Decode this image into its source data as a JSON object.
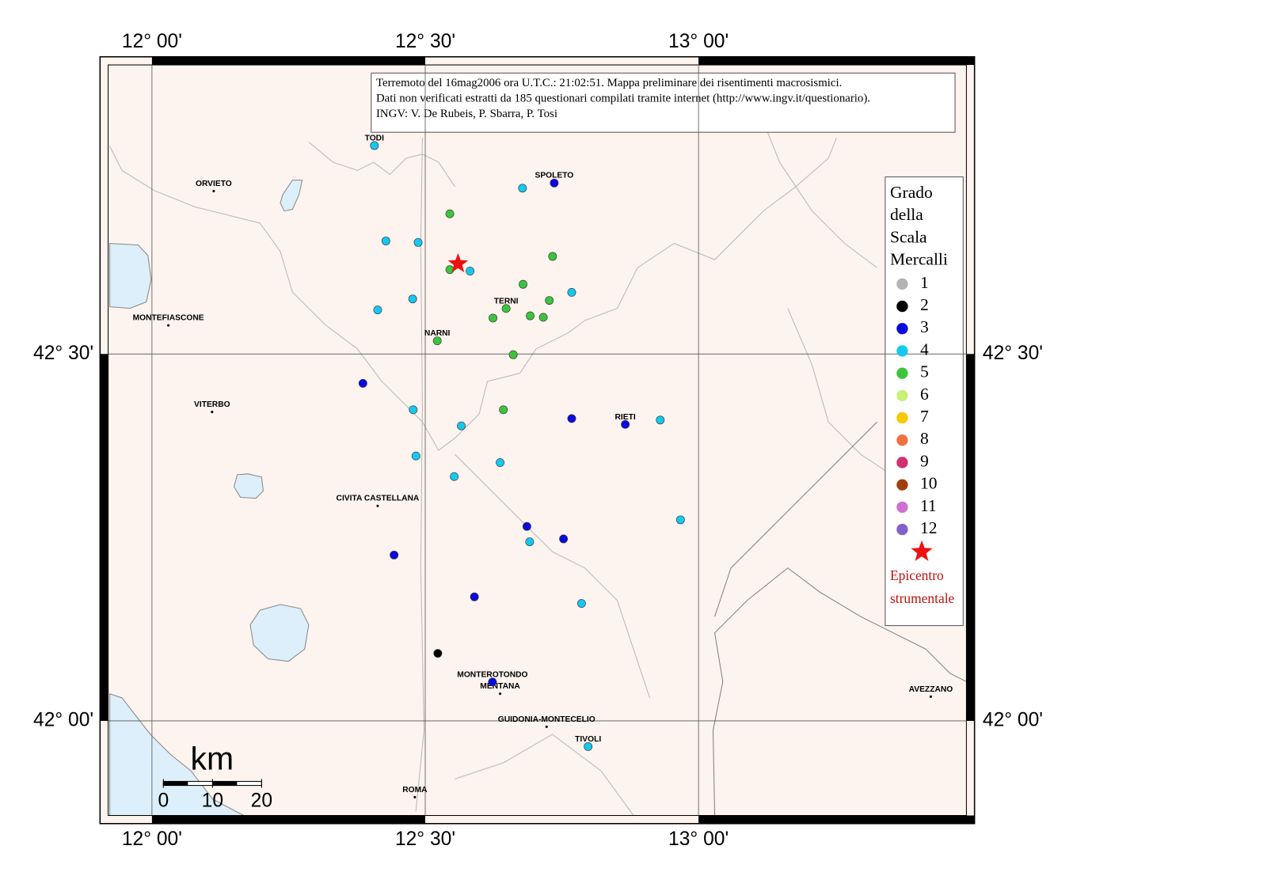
{
  "map": {
    "header": [
      "Terremoto del 16mag2006 ora U.T.C.: 21:02:51.  Mappa preliminare dei risentimenti macrosismici.",
      "Dati non verificati estratti da 185 questionari compilati tramite internet (http://www.ingv.it/questionario).",
      "INGV: V.  De Rubeis, P.  Sbarra, P.  Tosi"
    ],
    "xlim": [
      11.905,
      13.505
    ],
    "ylim": [
      41.86,
      42.905
    ],
    "xticks": [
      {
        "value": 12.0,
        "label": "12° 00'"
      },
      {
        "value": 12.5,
        "label": "12° 30'"
      },
      {
        "value": 13.0,
        "label": "13° 00'"
      }
    ],
    "yticks": [
      {
        "value": 42.0,
        "label": "42° 00'"
      },
      {
        "value": 42.5,
        "label": "42° 30'"
      }
    ],
    "grid": true,
    "scale_bar": {
      "unit": "km",
      "ticks": [
        0,
        10,
        20
      ]
    },
    "cities": [
      {
        "name": "TODI",
        "lon": 12.407,
        "lat": 42.784
      },
      {
        "name": "ORVIETO",
        "lon": 12.113,
        "lat": 42.722
      },
      {
        "name": "SPOLETO",
        "lon": 12.736,
        "lat": 42.733
      },
      {
        "name": "MONTEFIASCONE",
        "lon": 12.03,
        "lat": 42.539
      },
      {
        "name": "TERNI",
        "lon": 12.648,
        "lat": 42.562
      },
      {
        "name": "NARNI",
        "lon": 12.522,
        "lat": 42.518
      },
      {
        "name": "VITERBO",
        "lon": 12.11,
        "lat": 42.421
      },
      {
        "name": "RIETI",
        "lon": 12.866,
        "lat": 42.404
      },
      {
        "name": "CIVITA CASTELLANA",
        "lon": 12.413,
        "lat": 42.293
      },
      {
        "name": "MONTEROTONDO",
        "lon": 12.623,
        "lat": 42.053
      },
      {
        "name": "MENTANA",
        "lon": 12.637,
        "lat": 42.037
      },
      {
        "name": "GUIDONIA-MONTECELIO",
        "lon": 12.722,
        "lat": 41.992
      },
      {
        "name": "TIVOLI",
        "lon": 12.798,
        "lat": 41.965
      },
      {
        "name": "ROMA",
        "lon": 12.481,
        "lat": 41.896
      },
      {
        "name": "AVEZZANO",
        "lon": 13.425,
        "lat": 42.033
      }
    ],
    "points": [
      {
        "lon": 12.407,
        "lat": 42.784,
        "grade": 4
      },
      {
        "lon": 12.678,
        "lat": 42.726,
        "grade": 4
      },
      {
        "lon": 12.428,
        "lat": 42.654,
        "grade": 4
      },
      {
        "lon": 12.487,
        "lat": 42.652,
        "grade": 4
      },
      {
        "lon": 12.582,
        "lat": 42.613,
        "grade": 4
      },
      {
        "lon": 12.768,
        "lat": 42.584,
        "grade": 4
      },
      {
        "lon": 12.477,
        "lat": 42.575,
        "grade": 4
      },
      {
        "lon": 12.413,
        "lat": 42.56,
        "grade": 4
      },
      {
        "lon": 12.478,
        "lat": 42.424,
        "grade": 4
      },
      {
        "lon": 12.566,
        "lat": 42.402,
        "grade": 4
      },
      {
        "lon": 12.93,
        "lat": 42.41,
        "grade": 4
      },
      {
        "lon": 12.483,
        "lat": 42.361,
        "grade": 4
      },
      {
        "lon": 12.637,
        "lat": 42.352,
        "grade": 4
      },
      {
        "lon": 12.553,
        "lat": 42.333,
        "grade": 4
      },
      {
        "lon": 12.967,
        "lat": 42.274,
        "grade": 4
      },
      {
        "lon": 12.691,
        "lat": 42.244,
        "grade": 4
      },
      {
        "lon": 12.786,
        "lat": 42.16,
        "grade": 4
      },
      {
        "lon": 12.798,
        "lat": 41.965,
        "grade": 4
      },
      {
        "lon": 12.736,
        "lat": 42.733,
        "grade": 3
      },
      {
        "lon": 12.386,
        "lat": 42.46,
        "grade": 3
      },
      {
        "lon": 12.768,
        "lat": 42.412,
        "grade": 3
      },
      {
        "lon": 12.866,
        "lat": 42.404,
        "grade": 3
      },
      {
        "lon": 12.686,
        "lat": 42.265,
        "grade": 3
      },
      {
        "lon": 12.753,
        "lat": 42.248,
        "grade": 3
      },
      {
        "lon": 12.443,
        "lat": 42.226,
        "grade": 3
      },
      {
        "lon": 12.59,
        "lat": 42.169,
        "grade": 3
      },
      {
        "lon": 12.623,
        "lat": 42.053,
        "grade": 3
      },
      {
        "lon": 12.545,
        "lat": 42.691,
        "grade": 5
      },
      {
        "lon": 12.733,
        "lat": 42.633,
        "grade": 5
      },
      {
        "lon": 12.545,
        "lat": 42.615,
        "grade": 5
      },
      {
        "lon": 12.679,
        "lat": 42.595,
        "grade": 5
      },
      {
        "lon": 12.727,
        "lat": 42.573,
        "grade": 5
      },
      {
        "lon": 12.648,
        "lat": 42.562,
        "grade": 5
      },
      {
        "lon": 12.624,
        "lat": 42.549,
        "grade": 5
      },
      {
        "lon": 12.692,
        "lat": 42.552,
        "grade": 5
      },
      {
        "lon": 12.716,
        "lat": 42.55,
        "grade": 5
      },
      {
        "lon": 12.522,
        "lat": 42.518,
        "grade": 5
      },
      {
        "lon": 12.661,
        "lat": 42.499,
        "grade": 5
      },
      {
        "lon": 12.643,
        "lat": 42.424,
        "grade": 5
      },
      {
        "lon": 12.523,
        "lat": 42.092,
        "grade": 2
      }
    ],
    "epicenter": {
      "lon": 12.56,
      "lat": 42.623
    },
    "legend": {
      "title": [
        "Grado",
        "della",
        "Scala",
        "Mercalli"
      ],
      "grades": [
        {
          "grade": 1,
          "color": "#b4b4b4"
        },
        {
          "grade": 2,
          "color": "#000000"
        },
        {
          "grade": 3,
          "color": "#0a0ae0"
        },
        {
          "grade": 4,
          "color": "#14c8f0"
        },
        {
          "grade": 5,
          "color": "#3cc43c"
        },
        {
          "grade": 6,
          "color": "#c8f078"
        },
        {
          "grade": 7,
          "color": "#f8c800"
        },
        {
          "grade": 8,
          "color": "#f07040"
        },
        {
          "grade": 9,
          "color": "#d03070"
        },
        {
          "grade": 10,
          "color": "#a04010"
        },
        {
          "grade": 11,
          "color": "#d070d0"
        },
        {
          "grade": 12,
          "color": "#8060d0"
        }
      ],
      "epicenter_color": "#ee1111",
      "epicenter_label": [
        "Epicentro",
        "strumentale"
      ]
    }
  }
}
